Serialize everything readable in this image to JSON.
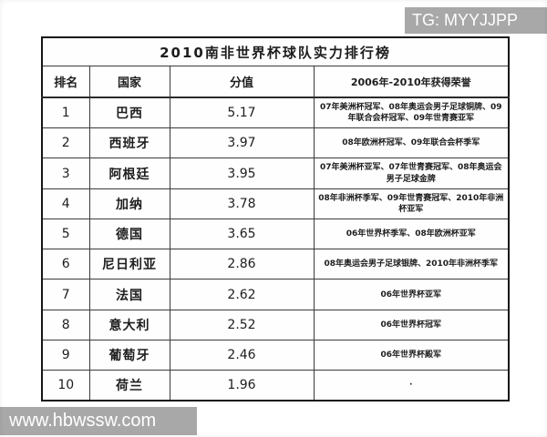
{
  "watermarks": {
    "top_right": "TG: MYYJJPP",
    "bottom_left": "www.hbwssw.com"
  },
  "table": {
    "title": "2010南非世界杯球队实力排行榜",
    "columns": {
      "rank": "排名",
      "country": "国家",
      "score": "分值",
      "honors": "2006年-2010年获得荣誉"
    },
    "rows": [
      {
        "rank": "1",
        "country": "巴西",
        "score": "5.17",
        "honors": "07年美洲杯冠军、08年奥运会男子足球铜牌、09年联合会杯冠军、09年世青赛亚军"
      },
      {
        "rank": "2",
        "country": "西班牙",
        "score": "3.97",
        "honors": "08年欧洲杯冠军、09年联合会杯季军"
      },
      {
        "rank": "3",
        "country": "阿根廷",
        "score": "3.95",
        "honors": "07年美洲杯亚军、07年世青赛冠军、08年奥运会男子足球金牌"
      },
      {
        "rank": "4",
        "country": "加纳",
        "score": "3.78",
        "honors": "08年非洲杯季军、09年世青赛冠军、2010年非洲杯亚军"
      },
      {
        "rank": "5",
        "country": "德国",
        "score": "3.65",
        "honors": "06年世界杯季军、08年欧洲杯亚军"
      },
      {
        "rank": "6",
        "country": "尼日利亚",
        "score": "2.86",
        "honors": "08年奥运会男子足球银牌、2010年非洲杯季军"
      },
      {
        "rank": "7",
        "country": "法国",
        "score": "2.62",
        "honors": "06年世界杯亚军"
      },
      {
        "rank": "8",
        "country": "意大利",
        "score": "2.52",
        "honors": "06年世界杯冠军"
      },
      {
        "rank": "9",
        "country": "葡萄牙",
        "score": "2.46",
        "honors": "06年世界杯殿军"
      },
      {
        "rank": "10",
        "country": "荷兰",
        "score": "1.96",
        "honors": "·"
      }
    ]
  },
  "colors": {
    "watermark_bg": "#a8a8a8",
    "table_border": "#161616"
  }
}
